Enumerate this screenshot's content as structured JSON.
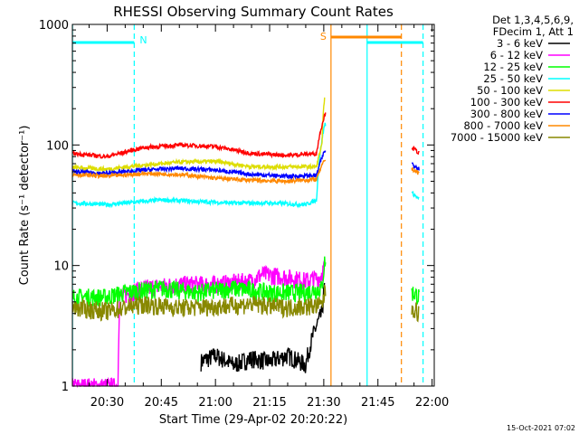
{
  "chart_data": {
    "type": "line",
    "title": "RHESSI Observing Summary Count Rates",
    "xlabel": "Start Time (29-Apr-02 20:20:22)",
    "ylabel": "Count Rate (s⁻¹ detector⁻¹)",
    "x_tick_labels": [
      "20:30",
      "20:45",
      "21:00",
      "21:15",
      "21:30",
      "21:45",
      "22:00"
    ],
    "x_tick_minutes": [
      30,
      45,
      60,
      75,
      90,
      105,
      120
    ],
    "xlim_minutes": [
      20.37,
      120.6
    ],
    "y_scale": "log",
    "ylim": [
      1,
      1000
    ],
    "y_tick_labels": [
      "1",
      "10",
      "100",
      "1000"
    ],
    "y_tick_values": [
      1,
      10,
      100,
      1000
    ],
    "legend_header": [
      "Det 1,3,4,5,6,9,",
      "FDecim 1, Att 1"
    ],
    "footer_date": "15-Oct-2021 07:02",
    "series": [
      {
        "name": "3 - 6 keV",
        "color": "#000000",
        "points": [
          [
            56,
            1.6
          ],
          [
            60,
            1.8
          ],
          [
            65,
            1.5
          ],
          [
            70,
            1.7
          ],
          [
            75,
            1.6
          ],
          [
            80,
            1.8
          ],
          [
            85,
            1.5
          ],
          [
            89.5,
            4
          ],
          [
            90.3,
            7
          ]
        ]
      },
      {
        "name": "6 - 12 keV",
        "color": "#ff00ff",
        "points": [
          [
            20.4,
            1
          ],
          [
            33,
            1
          ],
          [
            33.5,
            5.5
          ],
          [
            40,
            6.5
          ],
          [
            50,
            7
          ],
          [
            60,
            7
          ],
          [
            70,
            7.5
          ],
          [
            73,
            8.5
          ],
          [
            80,
            8
          ],
          [
            85,
            7.5
          ],
          [
            89,
            8
          ],
          [
            90.3,
            10
          ]
        ]
      },
      {
        "name": "12 - 25 keV",
        "color": "#00ff00",
        "points": [
          [
            20.4,
            5.5
          ],
          [
            30,
            5.5
          ],
          [
            35,
            6
          ],
          [
            45,
            6.5
          ],
          [
            55,
            6
          ],
          [
            65,
            6.5
          ],
          [
            75,
            6
          ],
          [
            85,
            6
          ],
          [
            89.5,
            6.5
          ],
          [
            90.3,
            11
          ],
          [
            114.5,
            6
          ],
          [
            116.5,
            5.5
          ]
        ]
      },
      {
        "name": "25 - 50 keV",
        "color": "#00ffff",
        "points": [
          [
            20.4,
            33
          ],
          [
            30,
            32
          ],
          [
            35,
            33
          ],
          [
            45,
            35
          ],
          [
            55,
            34
          ],
          [
            65,
            33
          ],
          [
            75,
            33
          ],
          [
            85,
            32
          ],
          [
            88,
            35
          ],
          [
            90.3,
            150
          ],
          [
            114.5,
            40
          ],
          [
            116.5,
            35
          ]
        ]
      },
      {
        "name": "50 - 100 keV",
        "color": "#dddd00",
        "points": [
          [
            20.4,
            65
          ],
          [
            30,
            63
          ],
          [
            40,
            68
          ],
          [
            50,
            72
          ],
          [
            60,
            73
          ],
          [
            70,
            66
          ],
          [
            80,
            66
          ],
          [
            88,
            66
          ],
          [
            89.5,
            100
          ],
          [
            90.3,
            270
          ]
        ]
      },
      {
        "name": "100 - 300 keV",
        "color": "#ff0000",
        "points": [
          [
            20.4,
            85
          ],
          [
            30,
            80
          ],
          [
            40,
            95
          ],
          [
            50,
            100
          ],
          [
            60,
            97
          ],
          [
            70,
            85
          ],
          [
            80,
            82
          ],
          [
            88,
            85
          ],
          [
            90.3,
            180
          ],
          [
            114.5,
            95
          ],
          [
            116.5,
            85
          ]
        ]
      },
      {
        "name": "300 - 800 keV",
        "color": "#0000ff",
        "points": [
          [
            20.4,
            60
          ],
          [
            30,
            58
          ],
          [
            40,
            62
          ],
          [
            50,
            64
          ],
          [
            60,
            62
          ],
          [
            70,
            57
          ],
          [
            80,
            55
          ],
          [
            88,
            56
          ],
          [
            90.3,
            90
          ],
          [
            114.5,
            70
          ],
          [
            116.5,
            63
          ]
        ]
      },
      {
        "name": "800 - 7000 keV",
        "color": "#ff8800",
        "points": [
          [
            20.4,
            57
          ],
          [
            30,
            55
          ],
          [
            40,
            58
          ],
          [
            50,
            57
          ],
          [
            60,
            53
          ],
          [
            70,
            51
          ],
          [
            80,
            50
          ],
          [
            88,
            52
          ],
          [
            90.3,
            75
          ],
          [
            114.5,
            63
          ],
          [
            116.5,
            58
          ]
        ]
      },
      {
        "name": "7000 - 15000 keV",
        "color": "#888800",
        "points": [
          [
            20.4,
            4.5
          ],
          [
            30,
            4.2
          ],
          [
            40,
            4.8
          ],
          [
            50,
            4.5
          ],
          [
            60,
            4.6
          ],
          [
            70,
            4.8
          ],
          [
            80,
            4.5
          ],
          [
            89.5,
            4.7
          ],
          [
            90.3,
            6
          ],
          [
            114.5,
            4.5
          ],
          [
            116.5,
            4
          ]
        ]
      }
    ],
    "annotations": [
      {
        "label": "N",
        "color": "#00ffff",
        "minute": 37.5
      },
      {
        "label": "S",
        "color": "#ff8800",
        "minute": 92
      }
    ],
    "vertical_lines": [
      {
        "minute": 20.4,
        "color": "#00ffff",
        "style": "solid"
      },
      {
        "minute": 37.5,
        "color": "#00ffff",
        "style": "dashed"
      },
      {
        "minute": 92.0,
        "color": "#ff8800",
        "style": "solid"
      },
      {
        "minute": 102.0,
        "color": "#00ffff",
        "style": "solid"
      },
      {
        "minute": 111.5,
        "color": "#ff8800",
        "style": "dashed"
      },
      {
        "minute": 117.5,
        "color": "#00ffff",
        "style": "dashed"
      }
    ],
    "top_bars": [
      {
        "color": "#00ffff",
        "from": 20.4,
        "to": 37.5
      },
      {
        "color": "#ff8800",
        "from": 92.0,
        "to": 111.5
      },
      {
        "color": "#00ffff",
        "from": 102.0,
        "to": 117.5
      }
    ],
    "gap_minutes": [
      90.5,
      114.3
    ]
  }
}
